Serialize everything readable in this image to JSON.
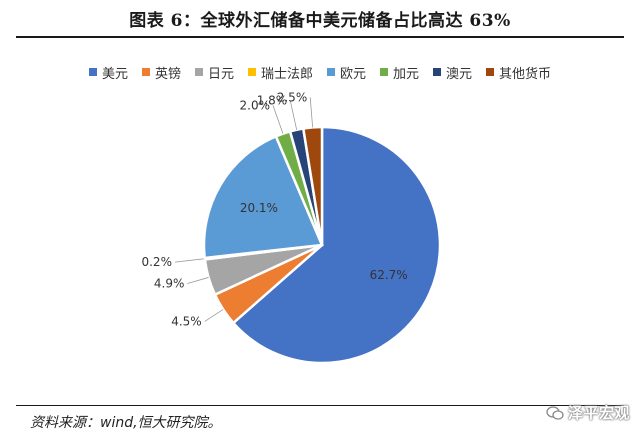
{
  "title": "图表 6：全球外汇储备中美元储备占比高达 63%",
  "source": "资料来源：wind,恒大研究院。",
  "watermark": "泽平宏观",
  "chart_data": {
    "type": "pie",
    "title": "图表 6：全球外汇储备中美元储备占比高达 63%",
    "legend_position": "top",
    "slices": [
      {
        "name": "美元",
        "value": 62.7,
        "label": "62.7%",
        "color": "#4472C4"
      },
      {
        "name": "英镑",
        "value": 4.5,
        "label": "4.5%",
        "color": "#ED7D31"
      },
      {
        "name": "日元",
        "value": 4.9,
        "label": "4.9%",
        "color": "#A5A5A5"
      },
      {
        "name": "瑞士法郎",
        "value": 0.2,
        "label": "0.2%",
        "color": "#FFC000"
      },
      {
        "name": "欧元",
        "value": 20.1,
        "label": "20.1%",
        "color": "#5B9BD5"
      },
      {
        "name": "加元",
        "value": 2.0,
        "label": "2.0%",
        "color": "#70AD47"
      },
      {
        "name": "澳元",
        "value": 1.8,
        "label": "1.8%",
        "color": "#264478"
      },
      {
        "name": "其他货币",
        "value": 2.5,
        "label": "2.5%",
        "color": "#9E480E"
      }
    ]
  }
}
